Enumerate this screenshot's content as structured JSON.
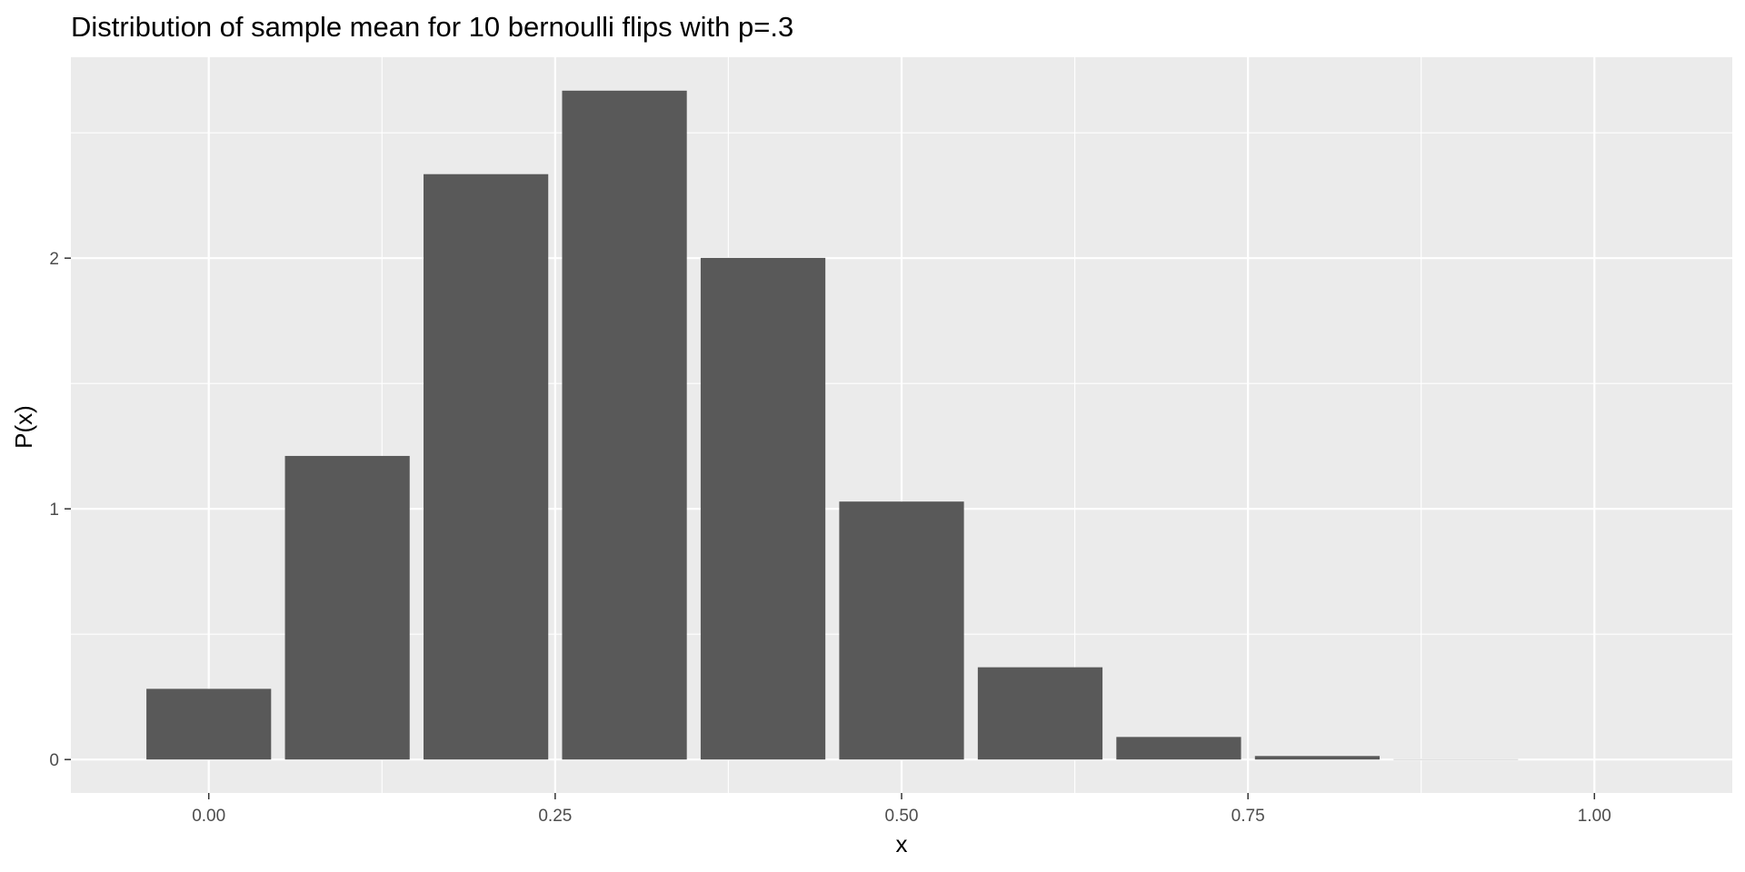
{
  "chart_data": {
    "type": "bar",
    "title": "Distribution of sample mean for 10 bernoulli flips with p=.3",
    "xlabel": "x",
    "ylabel": "P(x)",
    "x": [
      0.0,
      0.1,
      0.2,
      0.3,
      0.4,
      0.5,
      0.6,
      0.7,
      0.8,
      0.9,
      1.0
    ],
    "values": [
      0.282,
      1.211,
      2.335,
      2.668,
      2.001,
      1.029,
      0.368,
      0.09,
      0.014,
      0.001,
      0.0
    ],
    "bar_width": 0.09,
    "xlim": [
      -0.0995,
      1.0995
    ],
    "ylim": [
      -0.1334,
      2.8014
    ],
    "x_ticks": [
      0.0,
      0.25,
      0.5,
      0.75,
      1.0
    ],
    "x_tick_labels": [
      "0.00",
      "0.25",
      "0.50",
      "0.75",
      "1.00"
    ],
    "y_ticks": [
      0,
      1,
      2
    ],
    "y_tick_labels": [
      "0",
      "1",
      "2"
    ],
    "grid": true,
    "legend": "none",
    "colors": {
      "panel_background": "#ebebeb",
      "grid": "#ffffff",
      "bar_fill": "#595959",
      "tick": "#333333"
    }
  }
}
